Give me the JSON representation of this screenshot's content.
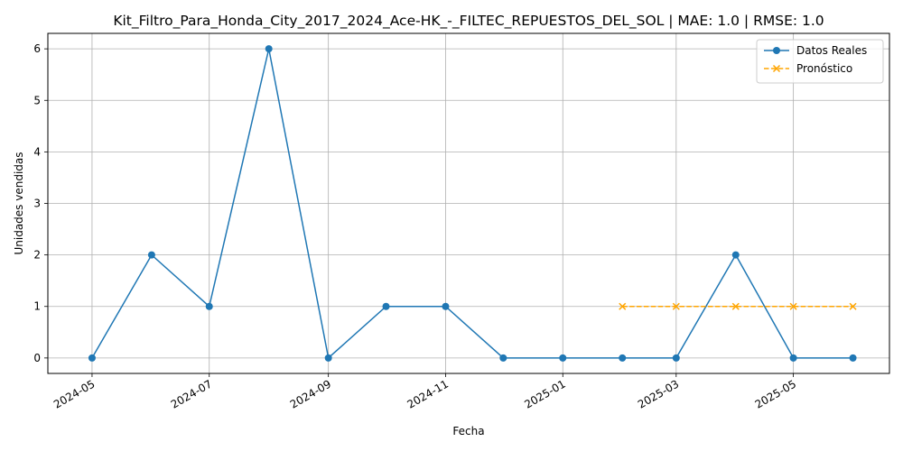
{
  "chart_data": {
    "type": "line",
    "title": "Kit_Filtro_Para_Honda_City_2017_2024_Ace-HK_-_FILTEC_REPUESTOS_DEL_SOL | MAE: 1.0 | RMSE: 1.0",
    "xlabel": "Fecha",
    "ylabel": "Unidades vendidas",
    "x_range": [
      "2024-04-08",
      "2025-06-20"
    ],
    "ylim": [
      -0.3,
      6.3
    ],
    "grid": true,
    "legend_position": "top-right",
    "x_ticks": [
      "2024-05",
      "2024-07",
      "2024-09",
      "2024-11",
      "2025-01",
      "2025-03",
      "2025-05"
    ],
    "y_ticks": [
      0,
      1,
      2,
      3,
      4,
      5,
      6
    ],
    "series": [
      {
        "name": "Datos Reales",
        "color": "#1f77b4",
        "marker": "circle",
        "line_style": "solid",
        "x": [
          "2024-05-01",
          "2024-06-01",
          "2024-07-01",
          "2024-08-01",
          "2024-09-01",
          "2024-10-01",
          "2024-11-01",
          "2024-12-01",
          "2025-01-01",
          "2025-02-01",
          "2025-03-01",
          "2025-04-01",
          "2025-05-01",
          "2025-06-01"
        ],
        "values": [
          0,
          2,
          1,
          6,
          0,
          1,
          1,
          0,
          0,
          0,
          0,
          2,
          0,
          0
        ]
      },
      {
        "name": "Pronóstico",
        "color": "#ffa500",
        "marker": "x",
        "line_style": "dashed",
        "x": [
          "2025-02-01",
          "2025-03-01",
          "2025-04-01",
          "2025-05-01",
          "2025-06-01"
        ],
        "values": [
          1,
          1,
          1,
          1,
          1
        ]
      }
    ]
  }
}
